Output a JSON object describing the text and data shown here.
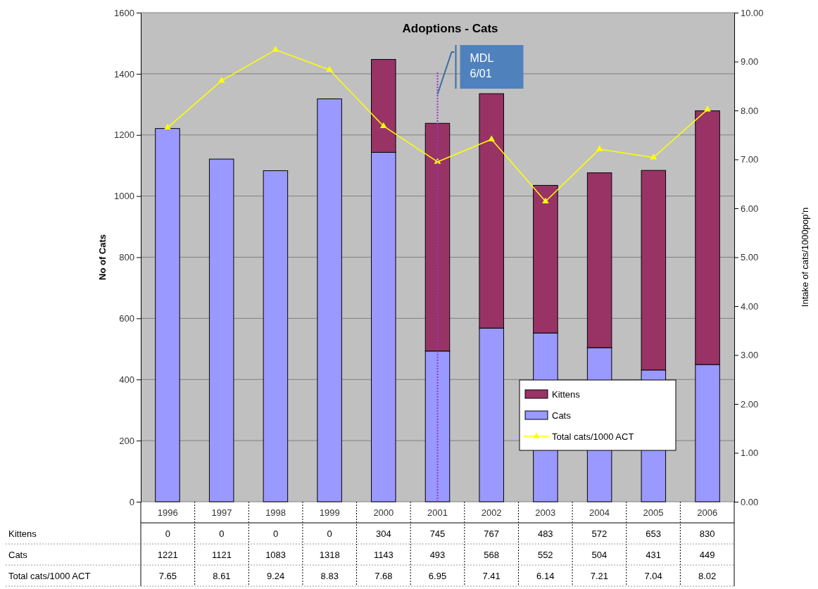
{
  "chart_data": {
    "type": "bar",
    "title": "Adoptions - Cats",
    "ylabel": "No of Cats",
    "y2label": "Intake of cats/1000pop'n",
    "categories": [
      "1996",
      "1997",
      "1998",
      "1999",
      "2000",
      "2001",
      "2002",
      "2003",
      "2004",
      "2005",
      "2006"
    ],
    "stacked": true,
    "series": [
      {
        "name": "Cats",
        "color": "#9999ff",
        "values": [
          1221,
          1121,
          1083,
          1318,
          1143,
          493,
          568,
          552,
          504,
          431,
          449
        ]
      },
      {
        "name": "Kittens",
        "color": "#993366",
        "values": [
          0,
          0,
          0,
          0,
          304,
          745,
          767,
          483,
          572,
          653,
          830
        ]
      },
      {
        "name": "Total cats/1000 ACT",
        "type": "line",
        "axis": "y2",
        "color": "#ffff00",
        "marker": "triangle",
        "values": [
          7.65,
          8.61,
          9.24,
          8.83,
          7.68,
          6.95,
          7.41,
          6.14,
          7.21,
          7.04,
          8.02
        ]
      }
    ],
    "ylim": [
      0,
      1600
    ],
    "yticks": [
      0,
      200,
      400,
      600,
      800,
      1000,
      1200,
      1400,
      1600
    ],
    "y2lim": [
      0,
      10
    ],
    "y2ticks": [
      {
        "value": 0,
        "label": "0.00"
      },
      {
        "value": 1,
        "label": "1.00"
      },
      {
        "value": 2,
        "label": "2.00"
      },
      {
        "value": 3,
        "label": "3.00"
      },
      {
        "value": 4,
        "label": "4.00"
      },
      {
        "value": 5,
        "label": "5.00"
      },
      {
        "value": 6,
        "label": "6.00"
      },
      {
        "value": 7,
        "label": "7.00"
      },
      {
        "value": 8,
        "label": "8.00"
      },
      {
        "value": 9,
        "label": "9.00"
      },
      {
        "value": 10,
        "label": "10.00"
      }
    ],
    "grid": "y",
    "legend": "bottom right",
    "data_labels": true,
    "ref_lines": [
      {
        "axis": "x",
        "value": "2001",
        "label": "MDL 6/01",
        "color": "#9933cc",
        "line_style": "dotted"
      }
    ]
  }
}
